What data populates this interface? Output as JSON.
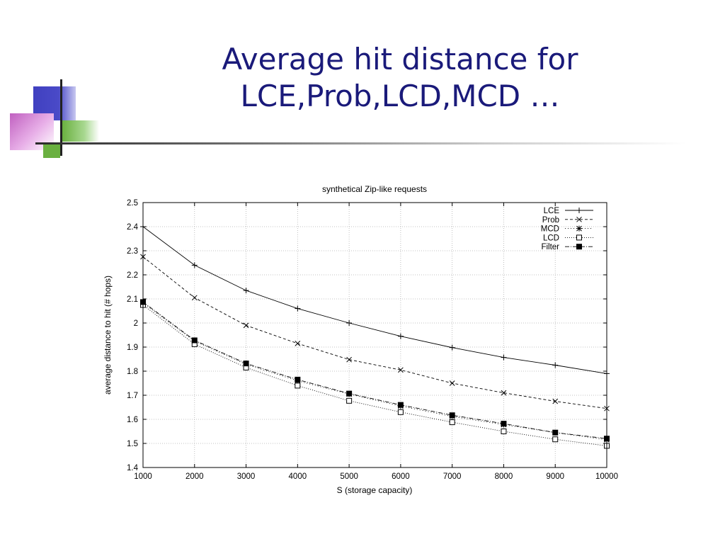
{
  "slide": {
    "title_lines": [
      "Average hit distance for",
      "LCE,Prob,LCD,MCD …"
    ]
  },
  "chart_data": {
    "type": "line",
    "title": "synthetical Zip-like requests",
    "xlabel": "S (storage capacity)",
    "ylabel": "average distance to hit (# hops)",
    "xlim": [
      1000,
      10000
    ],
    "ylim": [
      1.4,
      2.5
    ],
    "x_ticks": [
      1000,
      2000,
      3000,
      4000,
      5000,
      6000,
      7000,
      8000,
      9000,
      10000
    ],
    "y_ticks": [
      "1.4",
      "1.5",
      "1.6",
      "1.7",
      "1.8",
      "1.9",
      "2",
      "2.1",
      "2.2",
      "2.3",
      "2.4",
      "2.5"
    ],
    "grid": true,
    "legend_position": "top-right",
    "x": [
      1000,
      2000,
      3000,
      4000,
      5000,
      6000,
      7000,
      8000,
      9000,
      10000
    ],
    "series": [
      {
        "name": "LCE",
        "marker": "plus",
        "dash": "none",
        "values": [
          2.4,
          2.24,
          2.135,
          2.06,
          2.0,
          1.945,
          1.898,
          1.857,
          1.825,
          1.79
        ]
      },
      {
        "name": "Prob",
        "marker": "x",
        "dash": "4,3",
        "values": [
          2.275,
          2.105,
          1.99,
          1.915,
          1.848,
          1.805,
          1.75,
          1.71,
          1.675,
          1.645
        ]
      },
      {
        "name": "MCD",
        "marker": "star",
        "dash": "1,3",
        "values": [
          2.083,
          1.925,
          1.828,
          1.76,
          1.705,
          1.655,
          1.612,
          1.578,
          1.545,
          1.515
        ]
      },
      {
        "name": "LCD",
        "marker": "square-open",
        "dash": "1,2",
        "values": [
          2.075,
          1.912,
          1.815,
          1.74,
          1.677,
          1.63,
          1.588,
          1.55,
          1.517,
          1.49
        ]
      },
      {
        "name": "Filter",
        "marker": "square-filled",
        "dash": "6,2,1,2",
        "values": [
          2.087,
          1.928,
          1.832,
          1.765,
          1.707,
          1.66,
          1.617,
          1.582,
          1.545,
          1.52
        ]
      }
    ]
  }
}
